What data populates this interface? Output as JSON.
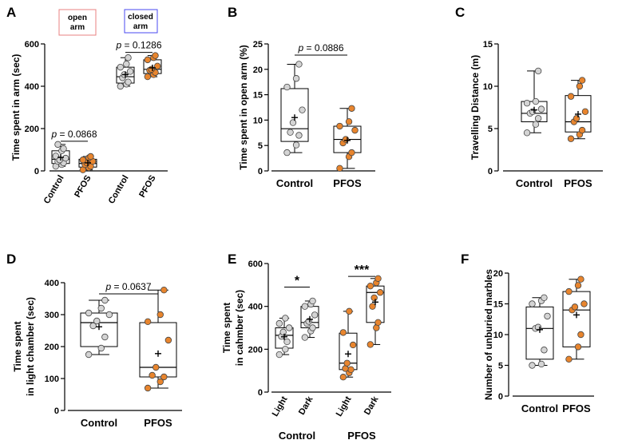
{
  "colors": {
    "control_fill": "#d4d4d4",
    "pfos_fill": "#e8852e",
    "open_arm_border": "#e88080",
    "closed_arm_border": "#4a4af0"
  },
  "legend": {
    "open_arm": "open\narm",
    "closed_arm": "closed\narm"
  },
  "group_labels": {
    "control": "Control",
    "pfos": "PFOS"
  },
  "chart_data": [
    {
      "id": "A",
      "letter": "A",
      "type": "boxplot",
      "ylabel": "Time spent in arm (sec)",
      "ylim": [
        0,
        600
      ],
      "yticks": [
        0,
        200,
        400,
        600
      ],
      "categories": [
        "Control",
        "PFOS",
        "Control",
        "PFOS"
      ],
      "xgroups": [],
      "boxes": [
        {
          "category": "Control",
          "group": "control",
          "min": 22,
          "q1": 35,
          "median": 55,
          "q3": 95,
          "max": 125,
          "mean": 64,
          "points": [
            22,
            30,
            38,
            45,
            52,
            60,
            70,
            95,
            105,
            125
          ]
        },
        {
          "category": "PFOS",
          "group": "pfos",
          "min": 5,
          "q1": 18,
          "median": 35,
          "q3": 55,
          "max": 68,
          "points": [
            5,
            15,
            22,
            30,
            38,
            45,
            52,
            62,
            68
          ],
          "mean": 38
        },
        {
          "category": "Control",
          "group": "control",
          "min": 400,
          "q1": 415,
          "median": 445,
          "q3": 490,
          "max": 535,
          "mean": 455,
          "points": [
            400,
            410,
            420,
            440,
            455,
            470,
            490,
            505,
            535
          ]
        },
        {
          "category": "PFOS",
          "group": "pfos",
          "min": 445,
          "q1": 460,
          "median": 480,
          "q3": 525,
          "max": 545,
          "mean": 487,
          "points": [
            445,
            455,
            465,
            475,
            480,
            495,
            525,
            535,
            545
          ]
        }
      ],
      "annotations": [
        {
          "text": "p = 0.0868",
          "from": 0,
          "to": 1,
          "y": 140
        },
        {
          "text": "p = 0.1286",
          "from": 2,
          "to": 3,
          "y": 560
        }
      ]
    },
    {
      "id": "B",
      "letter": "B",
      "type": "boxplot",
      "ylabel": "Time spent in open arm (%)",
      "ylim": [
        0,
        25
      ],
      "yticks": [
        0,
        5,
        10,
        15,
        20,
        25
      ],
      "categories": [
        "Control",
        "PFOS"
      ],
      "xgroups": [],
      "boxes": [
        {
          "category": "Control",
          "group": "control",
          "min": 3.6,
          "q1": 5.8,
          "median": 8.3,
          "q3": 16.2,
          "max": 21,
          "mean": 10.5,
          "points": [
            3.6,
            5.1,
            7.0,
            7.6,
            9.5,
            12.0,
            16.5,
            18.2,
            21
          ]
        },
        {
          "category": "PFOS",
          "group": "pfos",
          "min": 0.5,
          "q1": 3.6,
          "median": 6.2,
          "q3": 8.8,
          "max": 12.3,
          "mean": 6.0,
          "points": [
            0.5,
            2.8,
            3.6,
            5.5,
            6.2,
            8.0,
            8.8,
            9.7,
            12.3
          ]
        }
      ],
      "annotations": [
        {
          "text": "p = 0.0886",
          "from": 0,
          "to": 1,
          "y": 22.8
        }
      ]
    },
    {
      "id": "C",
      "letter": "C",
      "type": "boxplot",
      "ylabel": "Travelling Distance (m)",
      "ylim": [
        0,
        15
      ],
      "yticks": [
        0,
        5,
        10,
        15
      ],
      "categories": [
        "Control",
        "PFOS"
      ],
      "xgroups": [],
      "boxes": [
        {
          "category": "Control",
          "group": "control",
          "min": 4.5,
          "q1": 5.8,
          "median": 6.8,
          "q3": 8.2,
          "max": 11.8,
          "mean": 7.2,
          "points": [
            4.5,
            5.5,
            6.2,
            6.8,
            7.0,
            7.3,
            8.0,
            8.2,
            11.8
          ]
        },
        {
          "category": "PFOS",
          "group": "pfos",
          "min": 3.8,
          "q1": 4.6,
          "median": 5.8,
          "q3": 8.9,
          "max": 10.7,
          "mean": 6.7,
          "points": [
            3.8,
            4.3,
            4.8,
            5.8,
            6.2,
            7.0,
            8.8,
            10.0,
            10.7
          ]
        }
      ],
      "annotations": []
    },
    {
      "id": "D",
      "letter": "D",
      "type": "boxplot",
      "ylabel": "Time spent\nin light chamber (sec)",
      "ylim": [
        0,
        400
      ],
      "yticks": [
        0,
        100,
        200,
        300,
        400
      ],
      "categories": [
        "Control",
        "PFOS"
      ],
      "xgroups": [],
      "boxes": [
        {
          "category": "Control",
          "group": "control",
          "min": 175,
          "q1": 200,
          "median": 275,
          "q3": 305,
          "max": 345,
          "mean": 262,
          "points": [
            175,
            195,
            230,
            265,
            280,
            300,
            305,
            320,
            345
          ]
        },
        {
          "category": "PFOS",
          "group": "pfos",
          "min": 70,
          "q1": 105,
          "median": 135,
          "q3": 275,
          "max": 377,
          "mean": 178,
          "points": [
            70,
            90,
            105,
            110,
            135,
            220,
            278,
            300,
            377
          ]
        }
      ],
      "annotations": [
        {
          "text": "p = 0.0637",
          "from": 0,
          "to": 1,
          "y": 365
        }
      ]
    },
    {
      "id": "E",
      "letter": "E",
      "type": "boxplot",
      "ylabel": "Time spent\nin cahmber (sec)",
      "ylim": [
        0,
        600
      ],
      "yticks": [
        0,
        200,
        400,
        600
      ],
      "categories": [
        "Light",
        "Dark",
        "Light",
        "Dark"
      ],
      "xgroups": [
        {
          "label": "Control",
          "from": 0,
          "to": 1
        },
        {
          "label": "PFOS",
          "from": 2,
          "to": 3
        }
      ],
      "boxes": [
        {
          "category": "Light",
          "group": "control",
          "min": 175,
          "q1": 205,
          "median": 265,
          "q3": 300,
          "max": 345,
          "mean": 258,
          "points": [
            175,
            200,
            235,
            260,
            280,
            300,
            320,
            345
          ]
        },
        {
          "category": "Dark",
          "group": "control",
          "min": 255,
          "q1": 300,
          "median": 325,
          "q3": 400,
          "max": 425,
          "mean": 340,
          "points": [
            255,
            285,
            300,
            320,
            330,
            360,
            400,
            410,
            425
          ]
        },
        {
          "category": "Light",
          "group": "pfos",
          "min": 70,
          "q1": 105,
          "median": 135,
          "q3": 275,
          "max": 377,
          "mean": 178,
          "points": [
            70,
            90,
            105,
            110,
            135,
            220,
            278,
            377
          ]
        },
        {
          "category": "Dark",
          "group": "pfos",
          "min": 222,
          "q1": 325,
          "median": 465,
          "q3": 495,
          "max": 530,
          "mean": 420,
          "points": [
            222,
            300,
            325,
            400,
            440,
            465,
            495,
            510,
            530
          ]
        }
      ],
      "annotations": [
        {
          "text": "*",
          "from": 0,
          "to": 1,
          "y": 490,
          "style": "sig"
        },
        {
          "text": "***",
          "from": 2,
          "to": 3,
          "y": 540,
          "style": "sig"
        }
      ]
    },
    {
      "id": "F",
      "letter": "F",
      "type": "boxplot",
      "ylabel": "Number of unburied marbles",
      "ylim": [
        0,
        20
      ],
      "yticks": [
        0,
        5,
        10,
        15,
        20
      ],
      "categories": [
        "Control",
        "PFOS"
      ],
      "xgroups": [],
      "boxes": [
        {
          "category": "Control",
          "group": "control",
          "min": 5,
          "q1": 6,
          "median": 11,
          "q3": 14.5,
          "max": 16,
          "mean": 10.8,
          "points": [
            5,
            5.2,
            7.5,
            11,
            11.2,
            13,
            15,
            15.5,
            16
          ]
        },
        {
          "category": "PFOS",
          "group": "pfos",
          "min": 6,
          "q1": 8,
          "median": 14,
          "q3": 17,
          "max": 19,
          "mean": 13.2,
          "points": [
            6,
            8,
            10,
            14,
            14.5,
            15,
            17,
            18,
            19
          ]
        }
      ],
      "annotations": []
    }
  ]
}
